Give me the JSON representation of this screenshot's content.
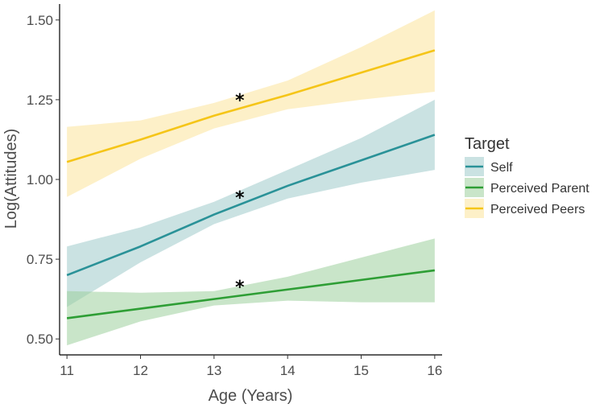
{
  "chart_data": {
    "type": "line",
    "title": "",
    "xlabel": "Age (Years)",
    "ylabel": "Log(Attitudes)",
    "xlim": [
      10.9,
      16.1
    ],
    "ylim": [
      0.45,
      1.55
    ],
    "xticks": [
      11,
      12,
      13,
      14,
      15,
      16
    ],
    "yticks": [
      0.5,
      0.75,
      1.0,
      1.25,
      1.5
    ],
    "xtick_labels": [
      "11",
      "12",
      "13",
      "14",
      "15",
      "16"
    ],
    "ytick_labels": [
      "0.50",
      "0.75",
      "1.00",
      "1.25",
      "1.50"
    ],
    "grid": false,
    "legend": {
      "title": "Target",
      "position": "right"
    },
    "series": [
      {
        "name": "Self",
        "color": "#2a9298",
        "fill": "#9ecacb",
        "x": [
          11,
          12,
          13,
          14,
          15,
          16
        ],
        "y": [
          0.7,
          0.79,
          0.89,
          0.98,
          1.06,
          1.14
        ],
        "ci_lower": [
          0.6,
          0.74,
          0.86,
          0.94,
          0.99,
          1.03
        ],
        "ci_upper": [
          0.79,
          0.85,
          0.93,
          1.03,
          1.13,
          1.25
        ],
        "significance": {
          "x": 13.35,
          "y": 0.95,
          "label": "*"
        }
      },
      {
        "name": "Perceived Parent",
        "color": "#2e9e35",
        "fill": "#9ccf9c",
        "x": [
          11,
          12,
          13,
          14,
          15,
          16
        ],
        "y": [
          0.565,
          0.595,
          0.625,
          0.655,
          0.685,
          0.715
        ],
        "ci_lower": [
          0.48,
          0.555,
          0.605,
          0.62,
          0.615,
          0.615
        ],
        "ci_upper": [
          0.65,
          0.645,
          0.65,
          0.695,
          0.755,
          0.815
        ],
        "significance": {
          "x": 13.35,
          "y": 0.67,
          "label": "*"
        }
      },
      {
        "name": "Perceived Peers",
        "color": "#f5c518",
        "fill": "#fbe39a",
        "x": [
          11,
          12,
          13,
          14,
          15,
          16
        ],
        "y": [
          1.055,
          1.125,
          1.2,
          1.265,
          1.335,
          1.405
        ],
        "ci_lower": [
          0.945,
          1.065,
          1.16,
          1.22,
          1.25,
          1.275
        ],
        "ci_upper": [
          1.165,
          1.185,
          1.24,
          1.31,
          1.415,
          1.53
        ],
        "significance": {
          "x": 13.35,
          "y": 1.255,
          "label": "*"
        }
      }
    ]
  }
}
